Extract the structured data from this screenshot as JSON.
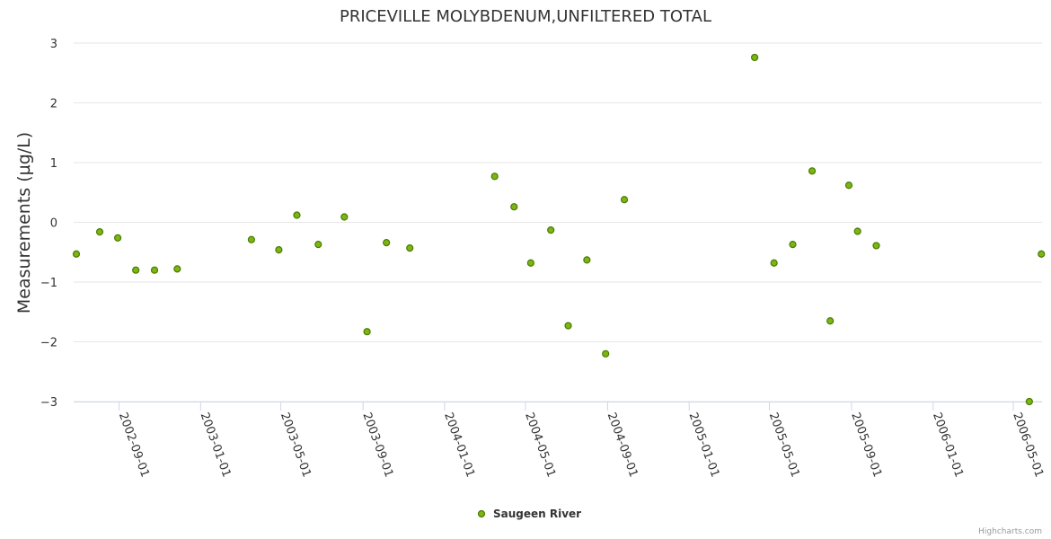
{
  "chart_data": {
    "type": "scatter",
    "title": "PRICEVILLE MOLYBDENUM,UNFILTERED TOTAL",
    "xlabel": "",
    "ylabel": "Measurements (µg/L)",
    "ylim": [
      -3,
      3
    ],
    "yticks": [
      3,
      2,
      1,
      0,
      -1,
      -2,
      -3
    ],
    "ytick_labels": [
      "3",
      "2",
      "1",
      "0",
      "−1",
      "−2",
      "−3"
    ],
    "xlim": [
      "2002-06-25",
      "2006-06-13"
    ],
    "xticks": [
      "2002-09-01",
      "2003-01-01",
      "2003-05-01",
      "2003-09-01",
      "2004-01-01",
      "2004-05-01",
      "2004-09-01",
      "2005-01-01",
      "2005-05-01",
      "2005-09-01",
      "2006-01-01",
      "2006-05-01"
    ],
    "grid": true,
    "legend_position": "bottom-center",
    "series": [
      {
        "name": "Saugeen River",
        "color": "#7cb514",
        "stroke": "#4a7a00",
        "points": [
          {
            "x": "2002-06-29",
            "y": -0.53
          },
          {
            "x": "2002-08-03",
            "y": -0.16
          },
          {
            "x": "2002-08-30",
            "y": -0.26
          },
          {
            "x": "2002-09-26",
            "y": -0.8
          },
          {
            "x": "2002-10-24",
            "y": -0.8
          },
          {
            "x": "2002-11-27",
            "y": -0.78
          },
          {
            "x": "2003-03-18",
            "y": -0.29
          },
          {
            "x": "2003-04-28",
            "y": -0.46
          },
          {
            "x": "2003-05-25",
            "y": 0.12
          },
          {
            "x": "2003-06-26",
            "y": -0.37
          },
          {
            "x": "2003-08-04",
            "y": 0.09
          },
          {
            "x": "2003-09-07",
            "y": -1.83
          },
          {
            "x": "2003-10-06",
            "y": -0.34
          },
          {
            "x": "2003-11-10",
            "y": -0.43
          },
          {
            "x": "2004-03-16",
            "y": 0.77
          },
          {
            "x": "2004-04-14",
            "y": 0.26
          },
          {
            "x": "2004-05-09",
            "y": -0.68
          },
          {
            "x": "2004-06-08",
            "y": -0.13
          },
          {
            "x": "2004-07-04",
            "y": -1.73
          },
          {
            "x": "2004-08-01",
            "y": -0.63
          },
          {
            "x": "2004-08-29",
            "y": -2.2
          },
          {
            "x": "2004-09-26",
            "y": 0.38
          },
          {
            "x": "2005-04-09",
            "y": 2.76
          },
          {
            "x": "2005-05-08",
            "y": -0.68
          },
          {
            "x": "2005-06-05",
            "y": -0.37
          },
          {
            "x": "2005-07-04",
            "y": 0.86
          },
          {
            "x": "2005-07-31",
            "y": -1.65
          },
          {
            "x": "2005-08-28",
            "y": 0.62
          },
          {
            "x": "2005-09-10",
            "y": -0.15
          },
          {
            "x": "2005-10-08",
            "y": -0.39
          },
          {
            "x": "2006-05-25",
            "y": -3.0
          },
          {
            "x": "2006-06-12",
            "y": -0.53
          }
        ]
      }
    ]
  },
  "credits": "Highcharts.com"
}
